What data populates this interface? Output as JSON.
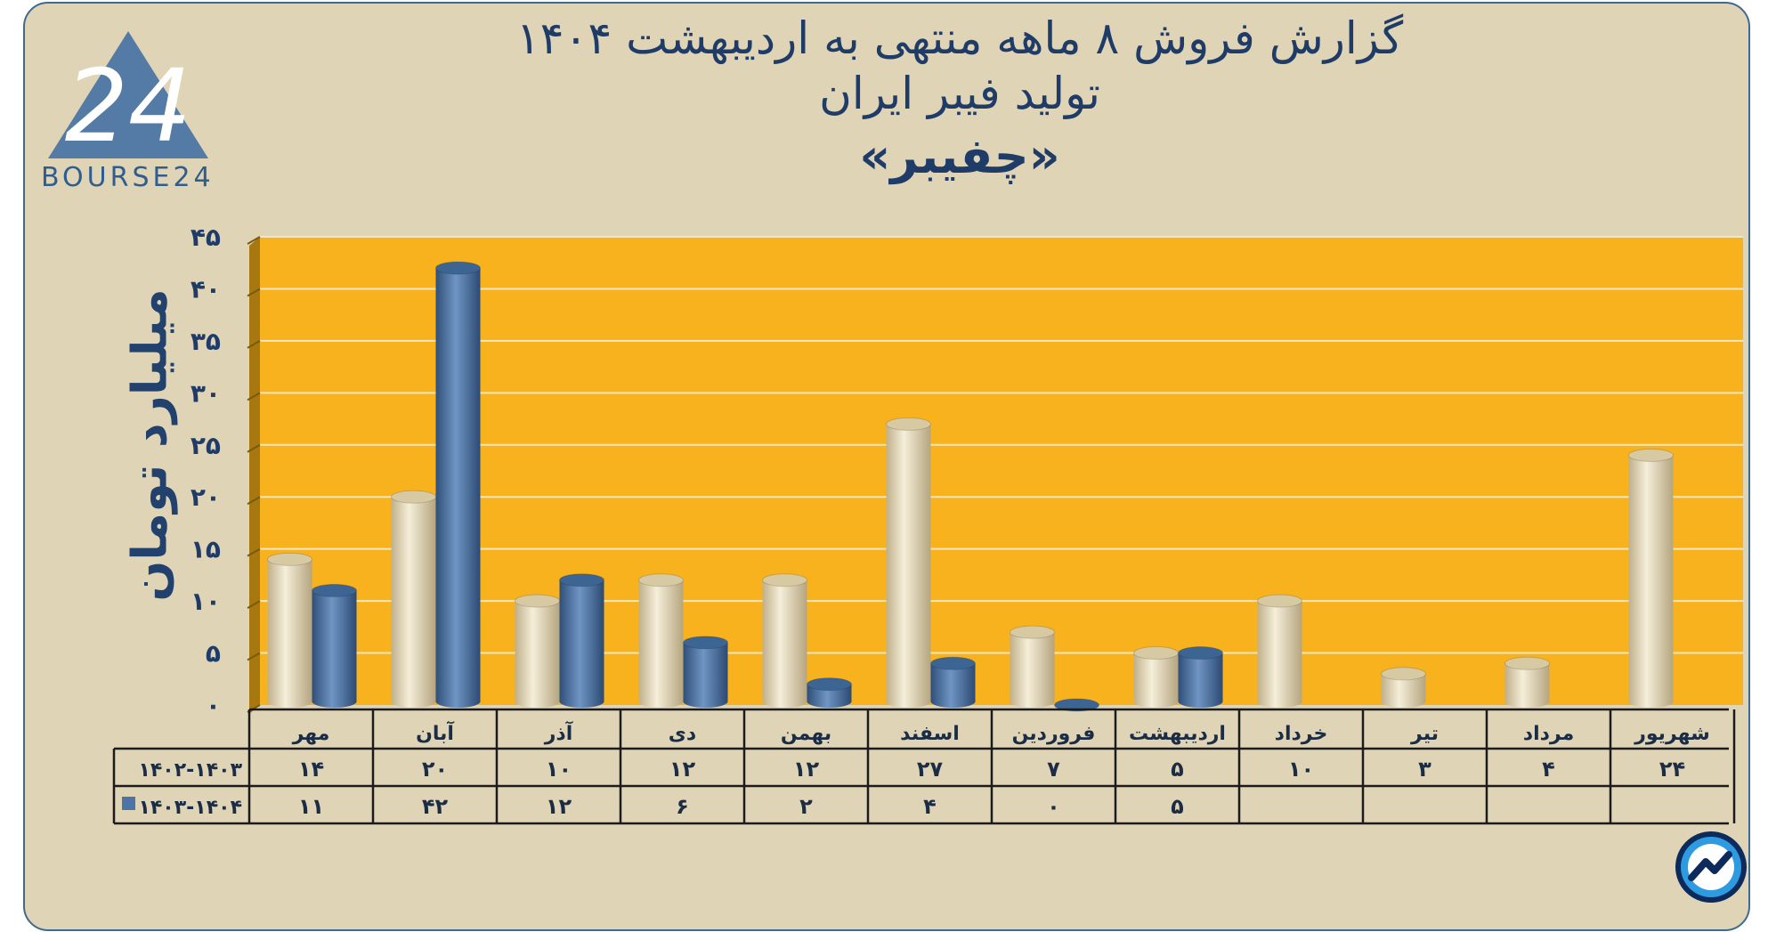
{
  "header": {
    "title_line1": "گزارش  فروش ۸ ماهه منتهی به اردیبهشت ۱۴۰۴",
    "title_line2": "تولید فیبر ایران",
    "title_line3": "«چفیبر»"
  },
  "logo": {
    "text": "BOURSE24",
    "mark": "24",
    "icon": "bourse24-triangle-logo"
  },
  "badge": {
    "icon": "trend-arrow-icon"
  },
  "colors": {
    "plot_bg": "#f7b21e",
    "series_a": "#e5dabb",
    "series_b": "#4c74a4",
    "title": "#1f3c68",
    "frame_bg": "#e0d4b7"
  },
  "chart_data": {
    "type": "bar",
    "ylabel": "میلیارد تومان",
    "xlabel": "",
    "ylim": [
      0,
      45
    ],
    "yticks": [
      "۰",
      "۵",
      "۱۰",
      "۱۵",
      "۲۰",
      "۲۵",
      "۳۰",
      "۳۵",
      "۴۰",
      "۴۵"
    ],
    "grid": true,
    "categories": [
      "مهر",
      "آبان",
      "آذر",
      "دی",
      "بهمن",
      "اسفند",
      "فروردین",
      "اردیبهشت",
      "خرداد",
      "تیر",
      "مرداد",
      "شهریور"
    ],
    "series": [
      {
        "name": "۱۴۰۲-۱۴۰۳",
        "values": [
          14,
          20,
          10,
          12,
          12,
          27,
          7,
          5,
          10,
          3,
          4,
          24
        ],
        "labels": [
          "۱۴",
          "۲۰",
          "۱۰",
          "۱۲",
          "۱۲",
          "۲۷",
          "۷",
          "۵",
          "۱۰",
          "۳",
          "۴",
          "۲۴"
        ]
      },
      {
        "name": "۱۴۰۳-۱۴۰۴",
        "values": [
          11,
          42,
          12,
          6,
          2,
          4,
          0,
          5,
          null,
          null,
          null,
          null
        ],
        "labels": [
          "۱۱",
          "۴۲",
          "۱۲",
          "۶",
          "۲",
          "۴",
          "۰",
          "۵",
          "",
          "",
          "",
          ""
        ]
      }
    ]
  }
}
